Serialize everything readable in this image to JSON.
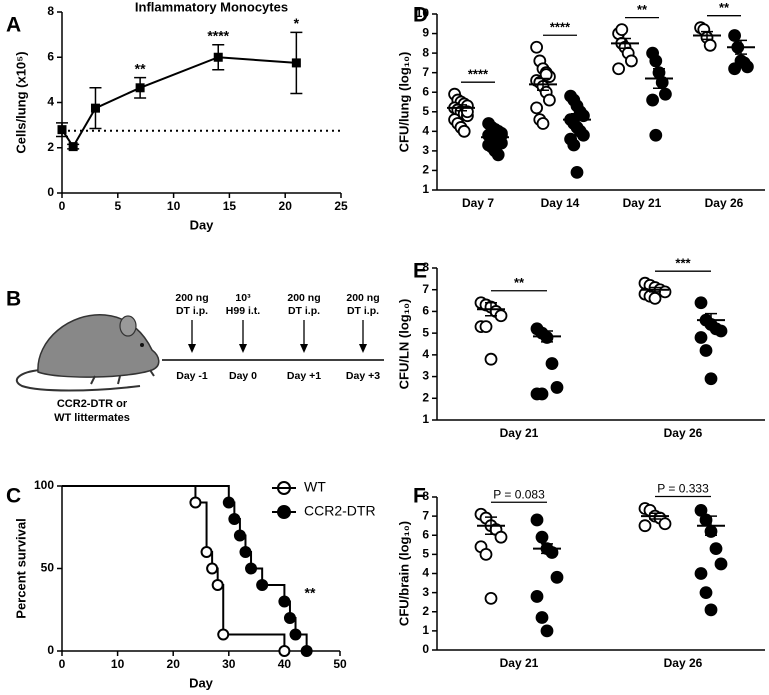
{
  "chart_data": [
    {
      "type": "line",
      "panel": "A",
      "title": "Inflammatory Monocytes",
      "x_label": "Day",
      "y_label": "Cells/lung (x10⁵)",
      "x": [
        0,
        1,
        3,
        7,
        14,
        21
      ],
      "values": [
        2.8,
        2.05,
        3.75,
        4.65,
        6.0,
        5.75
      ],
      "errors": [
        0.3,
        0.1,
        0.9,
        0.45,
        0.55,
        1.35
      ],
      "annotations": [
        null,
        null,
        null,
        "**",
        "****",
        "*"
      ],
      "reference_line": 2.75,
      "color": "#000000",
      "xlim": [
        0,
        25
      ],
      "xticks": [
        0,
        5,
        10,
        15,
        20,
        25
      ],
      "ylim": [
        0,
        8
      ],
      "yticks": [
        0,
        2,
        4,
        6,
        8
      ]
    },
    {
      "type": "step",
      "panel": "C",
      "x_label": "Day",
      "y_label": "Percent survival",
      "annotation": "**",
      "series": [
        {
          "name": "WT",
          "color": "#ffffff",
          "x": [
            0,
            24,
            26,
            27,
            28,
            29,
            40
          ],
          "values": [
            100,
            90,
            60,
            50,
            40,
            10,
            0
          ]
        },
        {
          "name": "CCR2-DTR",
          "color": "#000000",
          "x": [
            0,
            30,
            31,
            32,
            33,
            34,
            36,
            40,
            41,
            42,
            44
          ],
          "values": [
            100,
            90,
            80,
            70,
            60,
            50,
            40,
            30,
            20,
            10,
            0
          ]
        }
      ],
      "xlim": [
        0,
        50
      ],
      "xticks": [
        0,
        10,
        20,
        30,
        40,
        50
      ],
      "ylim": [
        0,
        100
      ],
      "yticks": [
        0,
        50,
        100
      ]
    },
    {
      "type": "dotplot",
      "panel": "D",
      "y_label": "CFU/lung (log₁₀)",
      "categories": [
        "Day 7",
        "Day 14",
        "Day 21",
        "Day 26"
      ],
      "annotations": [
        "****",
        "****",
        "**",
        "**"
      ],
      "series": [
        {
          "color": "#ffffff",
          "values": [
            [
              5.9,
              5.6,
              5.5,
              5.4,
              5.3,
              5.2,
              5.1,
              5.0,
              4.9,
              4.8,
              4.6,
              4.4,
              4.2,
              4.0,
              5.0
            ],
            [
              8.3,
              7.6,
              7.2,
              7.0,
              6.8,
              6.6,
              6.5,
              6.3,
              6.0,
              5.6,
              5.2,
              4.6,
              4.4,
              6.9
            ],
            [
              9.0,
              8.5,
              8.3,
              8.0,
              7.6,
              7.2,
              9.2
            ],
            [
              9.3,
              9.2,
              8.8,
              8.4
            ]
          ],
          "means": [
            5.2,
            6.4,
            8.5,
            8.9
          ],
          "errors": [
            0.15,
            0.3,
            0.25,
            0.2
          ]
        },
        {
          "color": "#000000",
          "values": [
            [
              4.4,
              4.2,
              4.1,
              4.0,
              3.9,
              3.8,
              3.7,
              3.6,
              3.5,
              3.4,
              3.3,
              3.2,
              3.0,
              2.8,
              3.8
            ],
            [
              5.8,
              5.6,
              5.3,
              5.0,
              4.8,
              4.6,
              4.4,
              4.2,
              4.0,
              3.8,
              3.6,
              3.3,
              1.9,
              4.9
            ],
            [
              8.0,
              7.6,
              7.0,
              6.5,
              5.9,
              5.6,
              3.8
            ],
            [
              8.9,
              8.3,
              7.6,
              7.5,
              7.3,
              7.2
            ]
          ],
          "means": [
            3.7,
            4.6,
            6.7,
            8.3
          ],
          "errors": [
            0.1,
            0.3,
            0.5,
            0.35
          ]
        }
      ],
      "ylim": [
        1,
        10
      ],
      "yticks": [
        1,
        2,
        3,
        4,
        5,
        6,
        7,
        8,
        9,
        10
      ]
    },
    {
      "type": "dotplot",
      "panel": "E",
      "y_label": "CFU/LN (log₁₀)",
      "categories": [
        "Day 21",
        "Day 26"
      ],
      "annotations": [
        "**",
        "***"
      ],
      "series": [
        {
          "color": "#ffffff",
          "values": [
            [
              6.4,
              6.3,
              6.2,
              6.0,
              5.8,
              5.3,
              5.3,
              3.8
            ],
            [
              7.3,
              7.2,
              7.1,
              7.0,
              6.9,
              6.8,
              6.7,
              6.6
            ]
          ],
          "means": [
            6.1,
            7.0
          ],
          "errors": [
            0.3,
            0.1
          ]
        },
        {
          "color": "#000000",
          "values": [
            [
              5.2,
              5.0,
              4.8,
              3.6,
              2.5,
              2.2,
              2.2
            ],
            [
              6.4,
              5.6,
              5.4,
              5.2,
              5.1,
              4.8,
              4.2,
              2.9
            ]
          ],
          "means": [
            4.85,
            5.6
          ],
          "errors": [
            0.25,
            0.3
          ]
        }
      ],
      "ylim": [
        1,
        8
      ],
      "yticks": [
        1,
        2,
        3,
        4,
        5,
        6,
        7,
        8
      ]
    },
    {
      "type": "dotplot",
      "panel": "F",
      "y_label": "CFU/brain (log₁₀)",
      "categories": [
        "Day 21",
        "Day 26"
      ],
      "annotations": [
        "P = 0.083",
        "P = 0.333"
      ],
      "series": [
        {
          "color": "#ffffff",
          "values": [
            [
              7.1,
              6.9,
              6.5,
              6.3,
              5.9,
              5.4,
              5.0,
              2.7
            ],
            [
              7.4,
              7.3,
              7.0,
              6.9,
              6.6,
              6.5
            ]
          ],
          "means": [
            6.5,
            7.0
          ],
          "errors": [
            0.45,
            0.15
          ]
        },
        {
          "color": "#000000",
          "values": [
            [
              6.8,
              5.9,
              5.3,
              5.1,
              3.8,
              2.8,
              1.7,
              1.0
            ],
            [
              7.3,
              6.8,
              6.2,
              5.3,
              4.5,
              4.0,
              3.0,
              2.1
            ]
          ],
          "means": [
            5.3,
            6.5
          ],
          "errors": [
            0.25,
            0.5
          ]
        }
      ],
      "ylim": [
        0,
        8
      ],
      "yticks": [
        0,
        1,
        2,
        3,
        4,
        5,
        6,
        7,
        8
      ]
    }
  ],
  "diagram": {
    "panel": "B",
    "subject": [
      "CCR2-DTR or",
      "WT littermates"
    ],
    "events": [
      {
        "label": [
          "200 ng",
          "DT i.p."
        ],
        "day": "Day -1"
      },
      {
        "label": [
          "10³",
          "H99 i.t."
        ],
        "day": "Day 0"
      },
      {
        "label": [
          "200 ng",
          "DT i.p."
        ],
        "day": "Day +1"
      },
      {
        "label": [
          "200 ng",
          "DT i.p."
        ],
        "day": "Day +3"
      }
    ]
  }
}
